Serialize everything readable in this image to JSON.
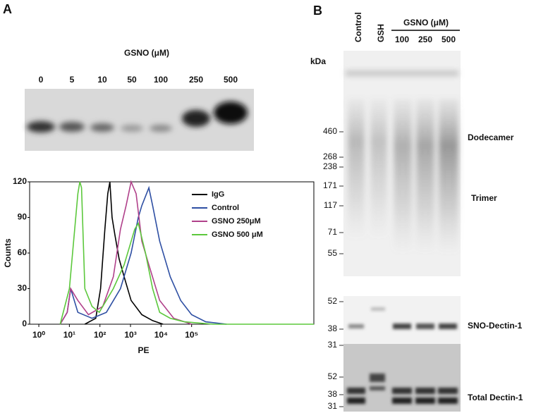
{
  "figure": {
    "panel_a": {
      "label": "A",
      "blot_header": "GSNO (μM)",
      "lanes": [
        "0",
        "5",
        "10",
        "50",
        "100",
        "250",
        "500"
      ]
    },
    "panel_b": {
      "label": "B",
      "lanes": [
        "Control",
        "GSH"
      ],
      "gsno_header": "GSNO (μM)",
      "gsno_lanes": [
        "100",
        "250",
        "500"
      ],
      "unit": "kDa",
      "markers": [
        "460",
        "268",
        "238",
        "171",
        "117",
        "71",
        "55"
      ],
      "band_labels": [
        "Dodecamer",
        "Trimer"
      ],
      "sno_markers": [
        "52",
        "38",
        "31"
      ],
      "sno_label": "SNO-Dectin-1",
      "total_markers": [
        "52",
        "38",
        "31"
      ],
      "total_label": "Total Dectin-1"
    }
  },
  "chart_data": {
    "type": "line",
    "xlabel": "PE",
    "ylabel": "Counts",
    "xlog": true,
    "xlim": [
      0.5,
      1000000000
    ],
    "ylim": [
      0,
      120
    ],
    "xticks": [
      {
        "value": 1,
        "label": "10⁰"
      },
      {
        "value": 10,
        "label": "10¹"
      },
      {
        "value": 100,
        "label": "10²"
      },
      {
        "value": 1000,
        "label": "10³"
      },
      {
        "value": 10000,
        "label": "10⁴"
      },
      {
        "value": 100000,
        "label": "10⁵"
      }
    ],
    "yticks": [
      0,
      30,
      60,
      90,
      120
    ],
    "legend": "upper right",
    "series": [
      {
        "name": "IgG",
        "color": "#000000",
        "x": [
          32,
          73,
          105,
          145,
          180,
          212,
          250,
          310,
          425,
          620,
          1050,
          2350,
          5300,
          11600
        ],
        "values": [
          0,
          5,
          30,
          80,
          110,
          120,
          90,
          75,
          55,
          40,
          20,
          8,
          3,
          0
        ]
      },
      {
        "name": "Control",
        "color": "#2e4fa3",
        "x": [
          5,
          8.5,
          11,
          19,
          55,
          162,
          470,
          1050,
          1800,
          2350,
          4000,
          5300,
          9000,
          20000,
          44000,
          100000,
          290000,
          1400000
        ],
        "values": [
          0,
          10,
          30,
          10,
          5,
          10,
          30,
          60,
          90,
          100,
          115,
          100,
          70,
          40,
          20,
          8,
          2,
          0
        ]
      },
      {
        "name": "GSNO 250μM",
        "color": "#b0408a",
        "x": [
          5,
          8.5,
          11,
          19,
          42,
          124,
          275,
          470,
          720,
          1050,
          1530,
          2350,
          4000,
          9000,
          26000,
          100000
        ],
        "values": [
          0,
          10,
          30,
          20,
          8,
          15,
          40,
          80,
          100,
          120,
          110,
          70,
          50,
          20,
          5,
          0
        ]
      },
      {
        "name": "GSNO 500 μM",
        "color": "#5cc83c",
        "x": [
          5,
          10,
          19,
          22,
          25,
          32,
          55,
          95,
          275,
          620,
          1370,
          1800,
          3100,
          5300,
          9000,
          20000,
          58000,
          500000,
          1000000000
        ],
        "values": [
          0,
          30,
          110,
          120,
          115,
          30,
          15,
          10,
          30,
          50,
          80,
          85,
          60,
          30,
          10,
          5,
          2,
          0,
          0
        ]
      }
    ]
  }
}
